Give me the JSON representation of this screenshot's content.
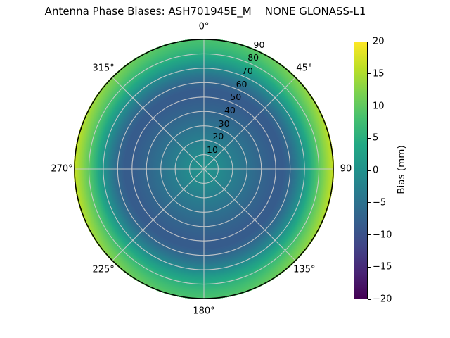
{
  "title": "Antenna Phase Biases: ASH701945E_M    NONE GLONASS-L1",
  "chart_data": {
    "type": "heatmap",
    "projection": "polar",
    "title": "Antenna Phase Biases: ASH701945E_M    NONE GLONASS-L1",
    "theta_zero": "top",
    "theta_direction": "clockwise",
    "theta_tick_angles_deg": [
      0,
      45,
      90,
      135,
      180,
      225,
      270,
      315
    ],
    "theta_tick_labels": [
      "0°",
      "45°",
      "90",
      "135°",
      "180°",
      "225°",
      "270°",
      "315°"
    ],
    "r_tick_values": [
      10,
      20,
      30,
      40,
      50,
      60,
      70,
      80,
      90
    ],
    "r_tick_labels": [
      "10",
      "20",
      "30",
      "40",
      "50",
      "60",
      "70",
      "80",
      "90"
    ],
    "r_max": 90,
    "grid": true,
    "colormap": "viridis",
    "colorbar": {
      "label": "Bias (mm)",
      "min": -20,
      "max": 20,
      "tick_values": [
        20,
        15,
        10,
        5,
        0,
        -5,
        -10,
        -15,
        -20
      ],
      "tick_labels": [
        "20",
        "15",
        "10",
        "5",
        "0",
        "−5",
        "−10",
        "−15",
        "−20"
      ]
    },
    "bias_vs_zenith_mm": {
      "zenith_deg": [
        0,
        10,
        20,
        30,
        40,
        50,
        55,
        60,
        65,
        70,
        75,
        80,
        85,
        90
      ],
      "bias_mm": [
        0.5,
        -1,
        -3,
        -5,
        -7,
        -8.5,
        -8.5,
        -7,
        -4.5,
        -1.5,
        2,
        5,
        7,
        8.5
      ]
    },
    "azimuthal_variation": {
      "description": "rim bias brightens toward azimuths 90° and 270° (extra positive bias, sin²(azimuth) weighting)",
      "extra_mm_at_rim": 8,
      "applies_above_zenith_deg": 55
    },
    "grid_color": "#cdcdcd",
    "outline_color": "#000000"
  }
}
